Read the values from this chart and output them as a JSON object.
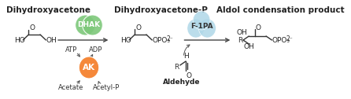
{
  "bg_color": "#ffffff",
  "title_fontsize": 7.5,
  "label_fontsize": 6.5,
  "small_fontsize": 6.0,
  "dhak_color": "#7dc87a",
  "dhak_text": "DHAK",
  "ak_color": "#f5883a",
  "ak_text": "AK",
  "f1pa_color": "#b0d8e8",
  "f1pa_text": "F-1PA",
  "section1_title": "Dihydroxyacetone",
  "section2_title": "Dihydroxyacetone-P",
  "section3_title": "Aldol condensation product",
  "atp_label": "ATP",
  "adp_label": "ADP",
  "acetate_label": "Acetate",
  "acetylp_label": "Acetyl-P",
  "aldehyde_label": "Aldehyde"
}
